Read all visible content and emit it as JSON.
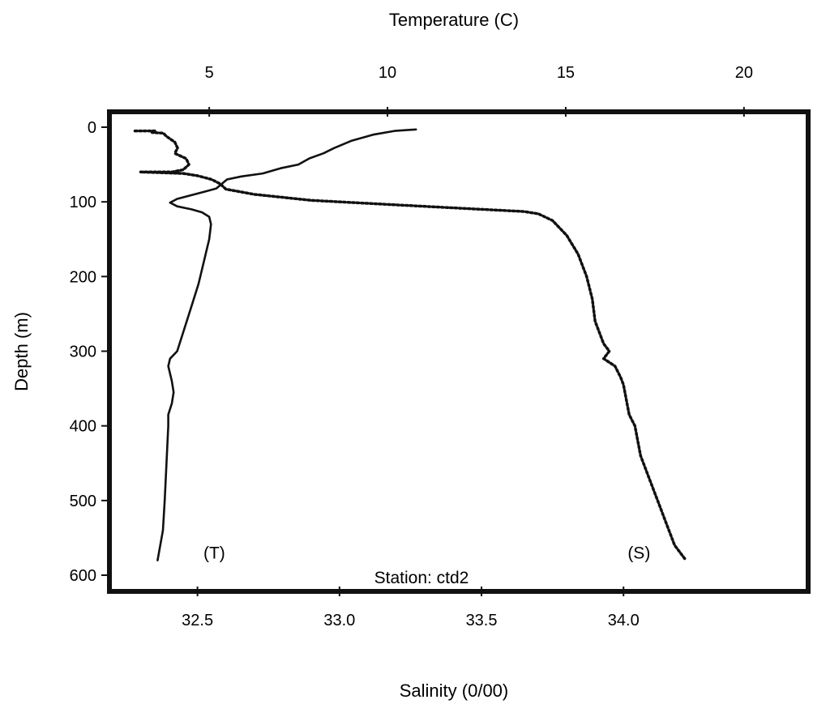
{
  "chart_data": {
    "type": "line",
    "title": "",
    "station_label": "Station: ctd2",
    "temperature_axis": {
      "label": "Temperature (C)",
      "range": [
        2.2,
        21.8
      ],
      "ticks": [
        5,
        10,
        15,
        20
      ],
      "tick_labels": [
        "5",
        "10",
        "15",
        "20"
      ]
    },
    "salinity_axis": {
      "label": "Salinity (0/00)",
      "range": [
        32.19,
        34.65
      ],
      "ticks": [
        32.5,
        33.0,
        33.5,
        34.0
      ],
      "tick_labels": [
        "32.5",
        "33.0",
        "33.5",
        "34.0"
      ]
    },
    "depth_axis": {
      "label": "Depth (m)",
      "range": [
        0,
        600
      ],
      "inverted": true,
      "ticks": [
        0,
        100,
        200,
        300,
        400,
        500,
        600
      ],
      "tick_labels": [
        "0",
        "100",
        "200",
        "300",
        "400",
        "500",
        "600"
      ]
    },
    "series": [
      {
        "name": "(T)",
        "axis": "temperature",
        "style": "solid",
        "color": "#111111",
        "points": [
          [
            10.8,
            3
          ],
          [
            10.2,
            5
          ],
          [
            9.6,
            10
          ],
          [
            9.0,
            18
          ],
          [
            8.5,
            28
          ],
          [
            8.2,
            35
          ],
          [
            7.8,
            42
          ],
          [
            7.5,
            50
          ],
          [
            7.0,
            55
          ],
          [
            6.5,
            62
          ],
          [
            5.9,
            66
          ],
          [
            5.5,
            70
          ],
          [
            5.3,
            78
          ],
          [
            5.2,
            82
          ],
          [
            4.9,
            86
          ],
          [
            4.5,
            91
          ],
          [
            4.1,
            96
          ],
          [
            3.9,
            101
          ],
          [
            4.1,
            106
          ],
          [
            4.5,
            110
          ],
          [
            4.8,
            114
          ],
          [
            5.0,
            120
          ],
          [
            5.05,
            130
          ],
          [
            5.0,
            150
          ],
          [
            4.85,
            180
          ],
          [
            4.7,
            210
          ],
          [
            4.5,
            240
          ],
          [
            4.3,
            270
          ],
          [
            4.1,
            300
          ],
          [
            3.9,
            310
          ],
          [
            3.85,
            320
          ],
          [
            3.95,
            340
          ],
          [
            4.0,
            355
          ],
          [
            3.95,
            370
          ],
          [
            3.85,
            385
          ],
          [
            3.85,
            400
          ],
          [
            3.8,
            450
          ],
          [
            3.75,
            500
          ],
          [
            3.7,
            540
          ],
          [
            3.55,
            580
          ]
        ]
      },
      {
        "name": "(S)",
        "axis": "salinity",
        "style": "dotted",
        "color": "#111111",
        "points": [
          [
            32.28,
            5
          ],
          [
            32.35,
            5
          ],
          [
            32.34,
            7
          ],
          [
            32.38,
            8
          ],
          [
            32.39,
            12
          ],
          [
            32.42,
            20
          ],
          [
            32.43,
            28
          ],
          [
            32.42,
            35
          ],
          [
            32.46,
            42
          ],
          [
            32.47,
            50
          ],
          [
            32.45,
            57
          ],
          [
            32.41,
            60
          ],
          [
            32.3,
            60
          ],
          [
            32.45,
            62
          ],
          [
            32.5,
            65
          ],
          [
            32.55,
            70
          ],
          [
            32.58,
            76
          ],
          [
            32.6,
            83
          ],
          [
            32.7,
            90
          ],
          [
            32.9,
            98
          ],
          [
            33.2,
            104
          ],
          [
            33.5,
            110
          ],
          [
            33.65,
            113
          ],
          [
            33.7,
            116
          ],
          [
            33.75,
            125
          ],
          [
            33.8,
            145
          ],
          [
            33.84,
            170
          ],
          [
            33.87,
            200
          ],
          [
            33.89,
            230
          ],
          [
            33.9,
            260
          ],
          [
            33.93,
            290
          ],
          [
            33.95,
            300
          ],
          [
            33.93,
            310
          ],
          [
            33.97,
            320
          ],
          [
            33.99,
            335
          ],
          [
            34.0,
            345
          ],
          [
            34.01,
            365
          ],
          [
            34.02,
            385
          ],
          [
            34.04,
            400
          ],
          [
            34.05,
            420
          ],
          [
            34.06,
            440
          ],
          [
            34.08,
            460
          ],
          [
            34.1,
            480
          ],
          [
            34.12,
            500
          ],
          [
            34.14,
            520
          ],
          [
            34.16,
            540
          ],
          [
            34.18,
            560
          ],
          [
            34.22,
            580
          ]
        ]
      }
    ]
  }
}
